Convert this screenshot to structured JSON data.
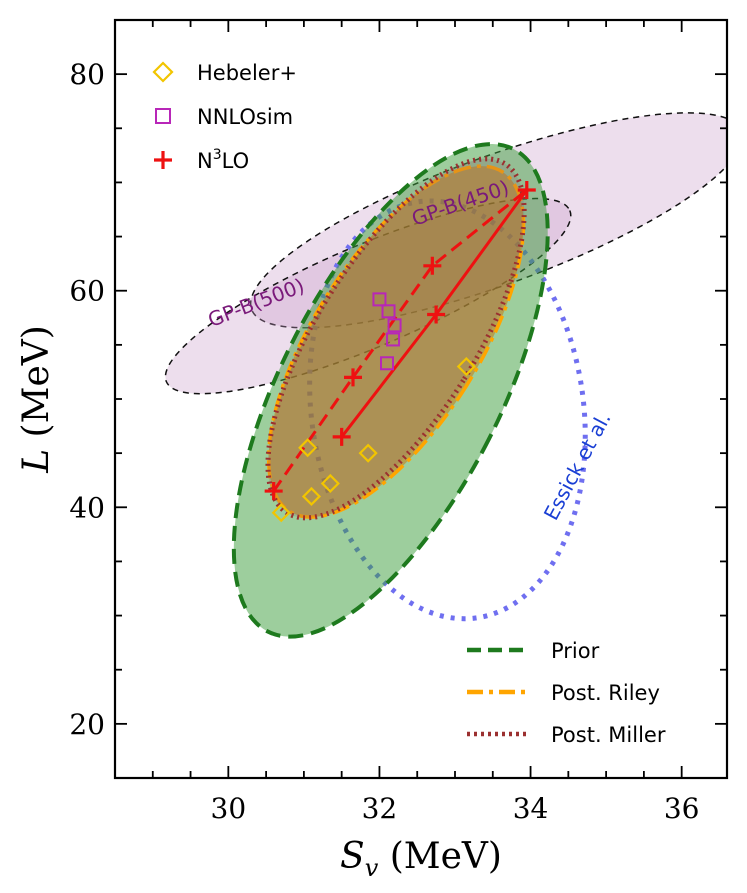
{
  "chart_data": {
    "type": "scatter",
    "xlabel_main": "S",
    "xlabel_sub": "v",
    "xlabel_unit": " (MeV)",
    "ylabel_main": "L",
    "ylabel_unit": " (MeV)",
    "xlim": [
      28.5,
      36.6
    ],
    "ylim": [
      15,
      85
    ],
    "xticks": [
      30,
      32,
      34,
      36
    ],
    "yticks": [
      20,
      40,
      60,
      80
    ],
    "colors": {
      "hebeler": "#f2c500",
      "nnlosim": "#b826b8",
      "n3lo": "#ee1111",
      "prior": "#1e7a1e",
      "riley": "#ffa500",
      "miller": "#9b3030",
      "essick": "#6f6ff0",
      "gpb": "#7a1a7a"
    },
    "legend_markers": [
      {
        "label_main": "Hebeler+",
        "label_sup": "",
        "label_tail": "",
        "marker": "diamond",
        "color": "#f2c500"
      },
      {
        "label_main": "NNLOsim",
        "label_sup": "",
        "label_tail": "",
        "marker": "square",
        "color": "#b826b8"
      },
      {
        "label_main": "N",
        "label_sup": "3",
        "label_tail": "LO",
        "marker": "plus",
        "color": "#ee1111"
      }
    ],
    "legend_lines": [
      {
        "label": "Prior",
        "color": "#1e7a1e",
        "style": "dashed"
      },
      {
        "label": "Post. Riley",
        "color": "#ffa500",
        "style": "dashdot"
      },
      {
        "label": "Post. Miller",
        "color": "#9b3030",
        "style": "dotted"
      }
    ],
    "hebeler": [
      [
        30.7,
        39.5
      ],
      [
        31.1,
        41
      ],
      [
        31.35,
        42.2
      ],
      [
        31.85,
        45
      ],
      [
        31.05,
        45.5
      ],
      [
        33.15,
        53
      ]
    ],
    "nnlosim": [
      [
        32.0,
        59.2
      ],
      [
        32.12,
        58.1
      ],
      [
        32.2,
        56.8
      ],
      [
        32.18,
        55.5
      ],
      [
        32.1,
        53.3
      ]
    ],
    "n3lo_dashed": [
      [
        30.6,
        41.5
      ],
      [
        31.65,
        52
      ],
      [
        32.7,
        62.3
      ],
      [
        33.95,
        69.3
      ]
    ],
    "n3lo_solid": [
      [
        31.5,
        46.5
      ],
      [
        32.75,
        57.8
      ],
      [
        33.95,
        69.3
      ]
    ],
    "region_labels": [
      {
        "text": "GP-B(450)",
        "x": 33.1,
        "y": 67.5,
        "angle": -19,
        "color": "#7a1a7a"
      },
      {
        "text": "GP-B(500)",
        "x": 30.4,
        "y": 58.3,
        "angle": -21,
        "color": "#7a1a7a"
      },
      {
        "text": "Essick et al.",
        "x": 34.7,
        "y": 43.5,
        "angle": -62,
        "color": "#1a3fd4"
      }
    ],
    "regions": [
      {
        "name": "gpb450",
        "cx": 33.55,
        "cy": 66.5,
        "rx": 3.45,
        "ry": 5.9,
        "rot": -20,
        "fill": "#c89ac8",
        "fill_opacity": 0.33,
        "stroke": "#111",
        "dash": "6 5",
        "width": 1.5
      },
      {
        "name": "gpb500",
        "cx": 31.85,
        "cy": 59.5,
        "rx": 2.9,
        "ry": 4.7,
        "rot": -23,
        "fill": "#c89ac8",
        "fill_opacity": 0.33,
        "stroke": "#111",
        "dash": "6 5",
        "width": 1.5
      },
      {
        "name": "essick",
        "cx": 32.9,
        "cy": 49,
        "rx": 1.8,
        "ry": 19.4,
        "rot": -8,
        "fill": "none",
        "fill_opacity": 0,
        "stroke": "#6f6ff0",
        "dash": "4 7",
        "width": 5
      },
      {
        "name": "prior",
        "cx": 32.15,
        "cy": 50.8,
        "rx": 1.45,
        "ry": 25,
        "rot": 27,
        "fill": "#3b9e3b",
        "fill_opacity": 0.5,
        "stroke": "#1e7a1e",
        "dash": "15 8",
        "width": 4
      },
      {
        "name": "riley",
        "cx": 32.22,
        "cy": 55.3,
        "rx": 1.1,
        "ry": 18.5,
        "rot": 32,
        "fill": "#c87a10",
        "fill_opacity": 0.55,
        "stroke": "#ffa500",
        "dash": "18 6 4 6",
        "width": 3.5
      },
      {
        "name": "miller",
        "cx": 32.22,
        "cy": 55.6,
        "rx": 1.05,
        "ry": 19,
        "rot": 32,
        "fill": "#8c5a6a",
        "fill_opacity": 0.22,
        "stroke": "#9b3030",
        "dash": "2 4",
        "width": 5
      }
    ]
  }
}
